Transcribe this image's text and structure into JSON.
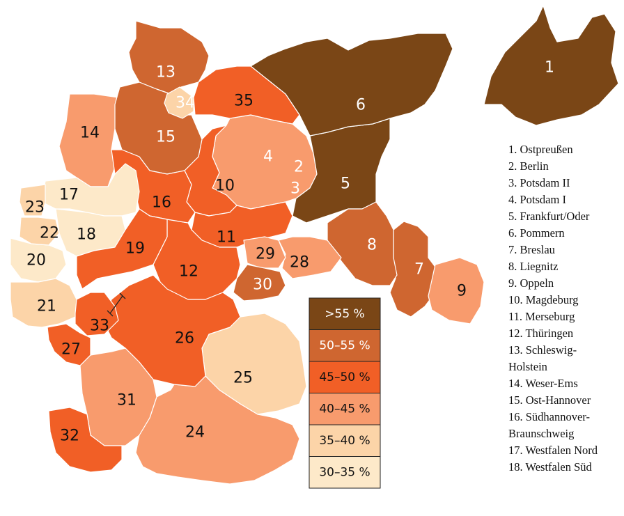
{
  "colors": {
    "gt55": "#7a4616",
    "c50_55": "#cf6630",
    "c45_50": "#f15f26",
    "c40_45": "#f89b6d",
    "c35_40": "#fcd4a8",
    "c30_35": "#fde9c9",
    "border": "#ffffff"
  },
  "regions": [
    {
      "num": "1",
      "name": "Ostpreußen",
      "cls": "gt55"
    },
    {
      "num": "2",
      "name": "Berlin",
      "cls": "c40_45"
    },
    {
      "num": "3",
      "name": "Potsdam II",
      "cls": "c35_40"
    },
    {
      "num": "4",
      "name": "Potsdam I",
      "cls": "c40_45"
    },
    {
      "num": "5",
      "name": "Frankfurt/Oder",
      "cls": "gt55"
    },
    {
      "num": "6",
      "name": "Pommern",
      "cls": "gt55"
    },
    {
      "num": "7",
      "name": "Breslau",
      "cls": "c50_55"
    },
    {
      "num": "8",
      "name": "Liegnitz",
      "cls": "c50_55"
    },
    {
      "num": "9",
      "name": "Oppeln",
      "cls": "c40_45"
    },
    {
      "num": "10",
      "name": "Magdeburg",
      "cls": "c45_50"
    },
    {
      "num": "11",
      "name": "Merseburg",
      "cls": "c45_50"
    },
    {
      "num": "12",
      "name": "Thüringen",
      "cls": "c45_50"
    },
    {
      "num": "13",
      "name": "Schleswig-\nHolstein",
      "cls": "c50_55"
    },
    {
      "num": "14",
      "name": "Weser-Ems",
      "cls": "c40_45"
    },
    {
      "num": "15",
      "name": "Ost-Hannover",
      "cls": "c50_55"
    },
    {
      "num": "16",
      "name": "Südhannover-\nBraunschweig",
      "cls": "c45_50"
    },
    {
      "num": "17",
      "name": "Westfalen Nord",
      "cls": "c30_35"
    },
    {
      "num": "18",
      "name": "Westfalen Süd",
      "cls": "c30_35"
    },
    {
      "num": "19",
      "cls": "c45_50"
    },
    {
      "num": "20",
      "cls": "c30_35"
    },
    {
      "num": "21",
      "cls": "c35_40"
    },
    {
      "num": "22",
      "cls": "c35_40"
    },
    {
      "num": "23",
      "cls": "c35_40"
    },
    {
      "num": "24",
      "cls": "c40_45"
    },
    {
      "num": "25",
      "cls": "c35_40"
    },
    {
      "num": "26",
      "cls": "c45_50"
    },
    {
      "num": "27",
      "cls": "c45_50"
    },
    {
      "num": "28",
      "cls": "c40_45"
    },
    {
      "num": "29",
      "cls": "c40_45"
    },
    {
      "num": "30",
      "cls": "c50_55"
    },
    {
      "num": "31",
      "cls": "c40_45"
    },
    {
      "num": "32",
      "cls": "c45_50"
    },
    {
      "num": "33",
      "cls": "c45_50"
    },
    {
      "num": "34",
      "cls": "c35_40"
    },
    {
      "num": "35",
      "cls": "c45_50"
    }
  ],
  "legend": [
    {
      "label": ">55 %",
      "cls": "gt55",
      "text_color": "#ffffff"
    },
    {
      "label": "50–55 %",
      "cls": "c50_55",
      "text_color": "#ffffff"
    },
    {
      "label": "45–50 %",
      "cls": "c45_50",
      "text_color": "#111111"
    },
    {
      "label": "40–45 %",
      "cls": "c40_45",
      "text_color": "#111111"
    },
    {
      "label": "35–40 %",
      "cls": "c35_40",
      "text_color": "#111111"
    },
    {
      "label": "30–35 %",
      "cls": "c30_35",
      "text_color": "#111111"
    }
  ]
}
